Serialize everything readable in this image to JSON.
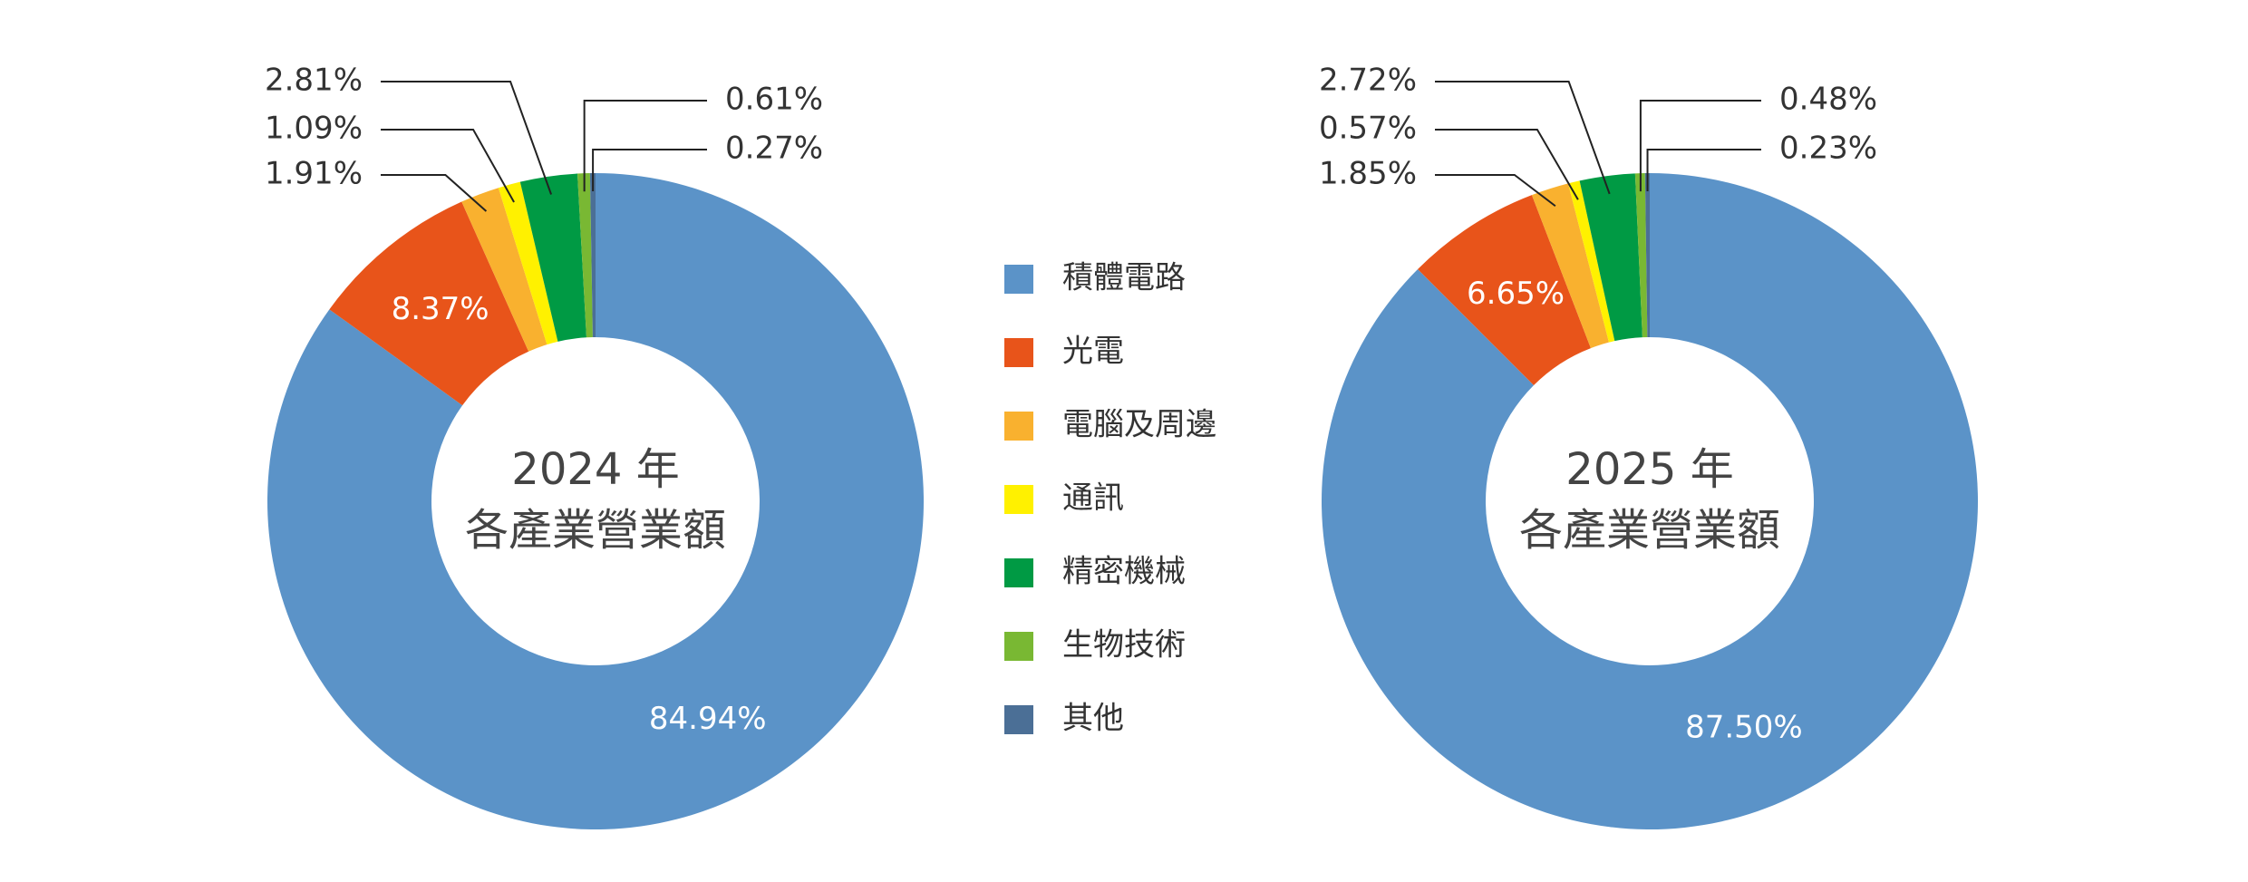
{
  "chart_data": [
    {
      "type": "donut",
      "title": "2024 年",
      "subtitle": "各產業營業額",
      "categories": [
        "積體電路",
        "光電",
        "電腦及周邊",
        "通訊",
        "精密機械",
        "生物技術",
        "其他"
      ],
      "colors": [
        "#5b93c8",
        "#e8541a",
        "#f9b12f",
        "#fff100",
        "#009a44",
        "#79b833",
        "#4b6f96"
      ],
      "values": [
        84.94,
        8.37,
        1.91,
        1.09,
        2.81,
        0.61,
        0.27
      ],
      "value_labels": [
        "84.94%",
        "8.37%",
        "1.91%",
        "1.09%",
        "2.81%",
        "0.61%",
        "0.27%"
      ]
    },
    {
      "type": "donut",
      "title": "2025 年",
      "subtitle": "各產業營業額",
      "colors": [
        "#5b93c8",
        "#e8541a",
        "#f9b12f",
        "#fff100",
        "#009a44",
        "#79b833",
        "#4b6f96"
      ],
      "values": [
        87.5,
        6.65,
        1.85,
        0.57,
        2.72,
        0.48,
        0.23
      ],
      "value_labels": [
        "87.50%",
        "6.65%",
        "1.85%",
        "0.57%",
        "2.72%",
        "0.48%",
        "0.23%"
      ]
    }
  ]
}
